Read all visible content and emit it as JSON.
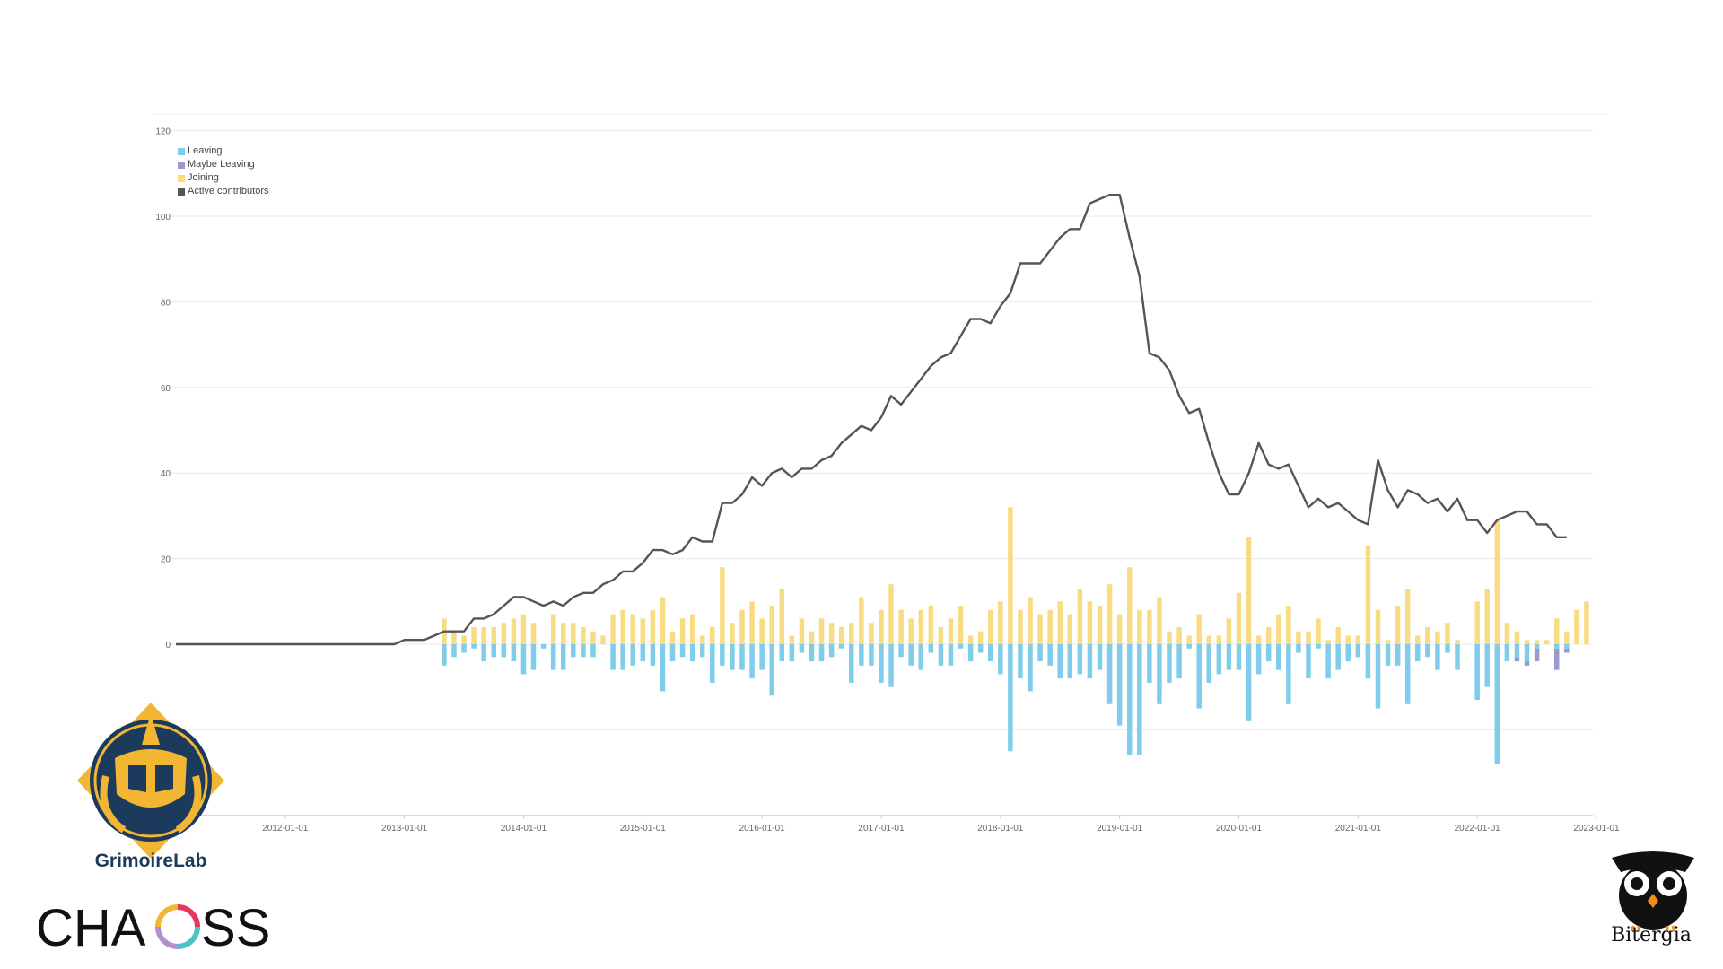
{
  "colors": {
    "leaving": "#7fcdea",
    "maybe_leaving": "#9b9ad0",
    "joining": "#f8dc84",
    "active": "#555555",
    "grid": "#e8e8e8",
    "axis_text": "#666666"
  },
  "legend": {
    "leaving": "Leaving",
    "maybe_leaving": "Maybe Leaving",
    "joining": "Joining",
    "active": "Active contributors"
  },
  "logos": {
    "grimoirelab": "GrimoireLab",
    "chaoss": "CHAOSS",
    "bitergia": "Bitergia",
    "grimoire_icon": "grimoirelab-logo-icon",
    "owl_icon": "bitergia-owl-icon"
  },
  "chart_data": {
    "type": "bar",
    "xlabel": "",
    "ylabel": "",
    "ylim": [
      -40,
      120
    ],
    "y_ticks": [
      "120",
      "100",
      "80",
      "60",
      "40",
      "20",
      "0"
    ],
    "y_tick_values": [
      120,
      100,
      80,
      60,
      40,
      20,
      0
    ],
    "x_tick_labels": [
      "2012-01-01",
      "2013-01-01",
      "2014-01-01",
      "2015-01-01",
      "2016-01-01",
      "2017-01-01",
      "2018-01-01",
      "2019-01-01",
      "2020-01-01",
      "2021-01-01",
      "2022-01-01",
      "2023-01-01"
    ],
    "x_start": "2011-02",
    "x_end": "2023-01",
    "grid": true,
    "legend_position": "top-left",
    "active_contributors": {
      "name": "Active contributors",
      "start": "2011-01",
      "values": [
        0,
        0,
        0,
        0,
        0,
        0,
        0,
        0,
        0,
        0,
        0,
        0,
        0,
        0,
        0,
        0,
        0,
        0,
        0,
        0,
        0,
        0,
        0,
        0,
        1,
        1,
        1,
        2,
        3,
        3,
        3,
        6,
        6,
        7,
        9,
        11,
        11,
        10,
        9,
        10,
        9,
        11,
        12,
        12,
        14,
        15,
        17,
        17,
        19,
        22,
        22,
        21,
        22,
        25,
        24,
        24,
        33,
        33,
        35,
        39,
        37,
        40,
        41,
        39,
        41,
        41,
        43,
        44,
        47,
        49,
        51,
        50,
        53,
        58,
        56,
        59,
        62,
        65,
        67,
        68,
        72,
        76,
        76,
        75,
        79,
        82,
        89,
        89,
        89,
        92,
        95,
        97,
        97,
        103,
        104,
        105,
        105,
        95,
        86,
        68,
        67,
        64,
        58,
        54,
        55,
        47,
        40,
        35,
        35,
        40,
        47,
        42,
        41,
        42,
        37,
        32,
        34,
        32,
        33,
        31,
        29,
        28,
        43,
        36,
        32,
        36,
        35,
        33,
        34,
        31,
        34,
        29,
        29,
        26,
        29,
        30,
        31,
        31,
        28,
        28,
        25,
        25
      ]
    },
    "bars_start": "2013-05",
    "joining": [
      6,
      3,
      2,
      4,
      4,
      4,
      5,
      6,
      7,
      5,
      0,
      7,
      5,
      5,
      4,
      3,
      2,
      7,
      8,
      7,
      6,
      8,
      11,
      3,
      6,
      7,
      2,
      4,
      18,
      5,
      8,
      10,
      6,
      9,
      13,
      2,
      6,
      3,
      6,
      5,
      4,
      5,
      11,
      5,
      8,
      14,
      8,
      6,
      8,
      9,
      4,
      6,
      9,
      2,
      3,
      8,
      10,
      32,
      8,
      11,
      7,
      8,
      10,
      7,
      13,
      10,
      9,
      14,
      7,
      18,
      8,
      8,
      11,
      3,
      4,
      2,
      7,
      2,
      2,
      6,
      12,
      25,
      2,
      4,
      7,
      9,
      3,
      3,
      6,
      1,
      4,
      2,
      2,
      23,
      8,
      1,
      9,
      13,
      2,
      4,
      3,
      5,
      1,
      0,
      10,
      13,
      29,
      5,
      3,
      1,
      1,
      1,
      6,
      3,
      8,
      10
    ],
    "leaving": [
      5,
      3,
      2,
      1,
      4,
      3,
      3,
      4,
      7,
      6,
      1,
      6,
      6,
      3,
      3,
      3,
      0,
      6,
      6,
      5,
      4,
      5,
      11,
      4,
      3,
      4,
      3,
      9,
      5,
      6,
      6,
      8,
      6,
      12,
      4,
      4,
      2,
      4,
      4,
      3,
      1,
      9,
      5,
      5,
      9,
      10,
      3,
      5,
      6,
      2,
      5,
      5,
      1,
      4,
      2,
      4,
      7,
      25,
      8,
      11,
      4,
      5,
      8,
      8,
      7,
      8,
      6,
      14,
      19,
      26,
      26,
      9,
      14,
      9,
      8,
      1,
      15,
      9,
      7,
      6,
      6,
      18,
      7,
      4,
      6,
      14,
      2,
      8,
      1,
      8,
      6,
      4,
      3,
      8,
      15,
      5,
      5,
      14,
      4,
      3,
      6,
      2,
      6,
      0,
      13,
      10,
      28,
      4,
      3,
      4,
      1,
      0,
      1,
      1,
      0,
      0
    ],
    "maybe_leaving": [
      0,
      0,
      0,
      0,
      0,
      0,
      0,
      0,
      0,
      0,
      0,
      0,
      0,
      0,
      0,
      0,
      0,
      0,
      0,
      0,
      0,
      0,
      0,
      0,
      0,
      0,
      0,
      0,
      0,
      0,
      0,
      0,
      0,
      0,
      0,
      0,
      0,
      0,
      0,
      0,
      0,
      0,
      0,
      0,
      0,
      0,
      0,
      0,
      0,
      0,
      0,
      0,
      0,
      0,
      0,
      0,
      0,
      0,
      0,
      0,
      0,
      0,
      0,
      0,
      0,
      0,
      0,
      0,
      0,
      0,
      0,
      0,
      0,
      0,
      0,
      0,
      0,
      0,
      0,
      0,
      0,
      0,
      0,
      0,
      0,
      0,
      0,
      0,
      0,
      0,
      0,
      0,
      0,
      0,
      0,
      0,
      0,
      0,
      0,
      0,
      0,
      0,
      0,
      0,
      0,
      0,
      0,
      0,
      1,
      1,
      3,
      0,
      5,
      1,
      0,
      0
    ]
  }
}
